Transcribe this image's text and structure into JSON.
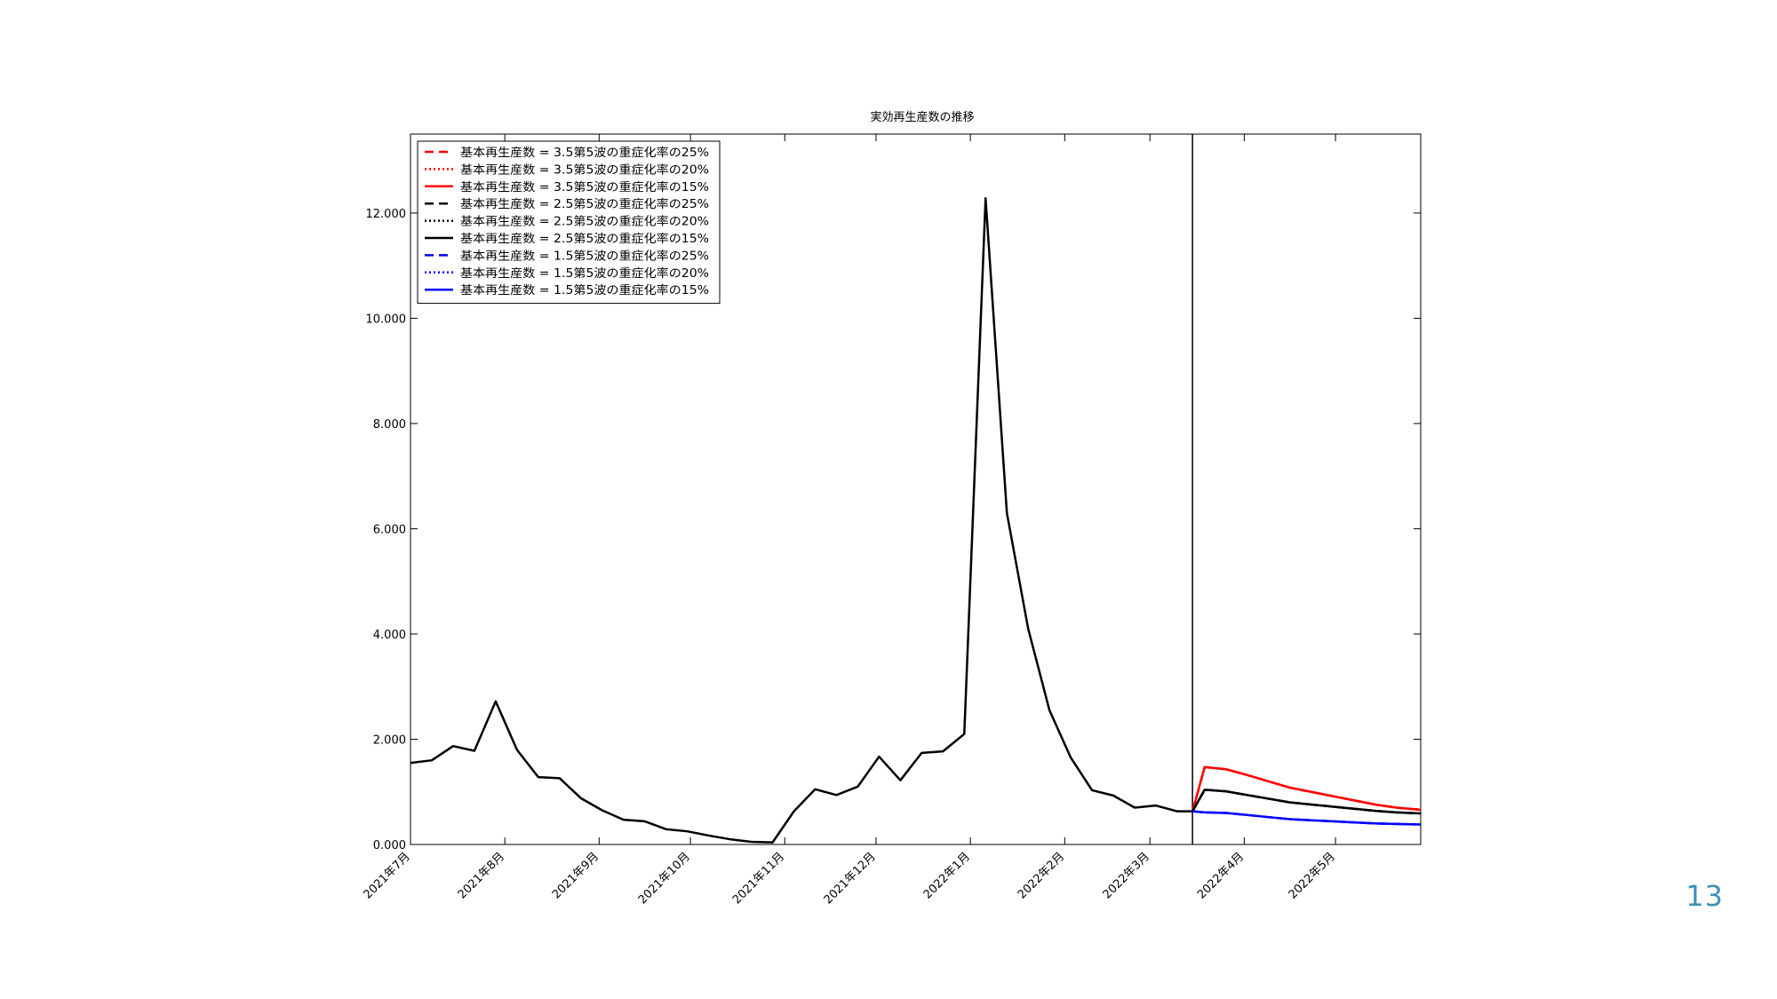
{
  "slide_number": "13",
  "chart_data": {
    "type": "line",
    "title": "実効再生産数の推移",
    "xlabel": "",
    "ylabel": "",
    "ylim": [
      0,
      13.5
    ],
    "yticks": [
      0,
      2,
      4,
      6,
      8,
      10,
      12
    ],
    "ytick_labels": [
      "0.000",
      "2.000",
      "4.000",
      "6.000",
      "8.000",
      "10.000",
      "12.000"
    ],
    "xlim": [
      "2021-07-01",
      "2022-05-29"
    ],
    "xticks": [
      "2021-07-01",
      "2021-08-01",
      "2021-09-01",
      "2021-10-01",
      "2021-11-01",
      "2021-12-01",
      "2022-01-01",
      "2022-02-01",
      "2022-03-01",
      "2022-04-01",
      "2022-05-01"
    ],
    "xtick_labels": [
      "2021年7月",
      "2021年8月",
      "2021年9月",
      "2021年10月",
      "2021年11月",
      "2021年12月",
      "2022年1月",
      "2022年2月",
      "2022年3月",
      "2022年4月",
      "2022年5月"
    ],
    "vline": "2022-03-15",
    "grid": false,
    "legend_position": "top-left",
    "colors": {
      "red": "#ff0000",
      "black": "#000000",
      "blue": "#0000ff"
    },
    "historical": {
      "x": [
        "2021-07-01",
        "2021-07-08",
        "2021-07-15",
        "2021-07-22",
        "2021-07-29",
        "2021-08-05",
        "2021-08-12",
        "2021-08-19",
        "2021-08-26",
        "2021-09-02",
        "2021-09-09",
        "2021-09-16",
        "2021-09-23",
        "2021-09-30",
        "2021-10-07",
        "2021-10-14",
        "2021-10-21",
        "2021-10-28",
        "2021-11-04",
        "2021-11-11",
        "2021-11-18",
        "2021-11-25",
        "2021-12-02",
        "2021-12-09",
        "2021-12-16",
        "2021-12-23",
        "2021-12-30",
        "2022-01-06",
        "2022-01-13",
        "2022-01-20",
        "2022-01-27",
        "2022-02-03",
        "2022-02-10",
        "2022-02-17",
        "2022-02-24",
        "2022-03-03",
        "2022-03-10",
        "2022-03-15"
      ],
      "values": [
        1.55,
        1.6,
        1.87,
        1.78,
        2.72,
        1.8,
        1.28,
        1.26,
        0.88,
        0.65,
        0.47,
        0.44,
        0.29,
        0.25,
        0.17,
        0.1,
        0.05,
        0.04,
        0.63,
        1.05,
        0.94,
        1.1,
        1.67,
        1.22,
        1.74,
        1.77,
        2.1,
        12.28,
        6.3,
        4.1,
        2.55,
        1.65,
        1.03,
        0.93,
        0.7,
        0.74,
        0.63,
        0.63
      ]
    },
    "projection_x": [
      "2022-03-15",
      "2022-03-19",
      "2022-03-26",
      "2022-04-02",
      "2022-04-09",
      "2022-04-16",
      "2022-04-23",
      "2022-04-30",
      "2022-05-07",
      "2022-05-14",
      "2022-05-21",
      "2022-05-29"
    ],
    "series": [
      {
        "name": "基本再生産数 = 3.5第5波の重症化率の25%",
        "color": "#ff0000",
        "style": "dashed",
        "values": [
          0.63,
          1.47,
          1.43,
          1.32,
          1.2,
          1.08,
          1.0,
          0.92,
          0.84,
          0.76,
          0.7,
          0.66
        ]
      },
      {
        "name": "基本再生産数 = 3.5第5波の重症化率の20%",
        "color": "#ff0000",
        "style": "dotted",
        "values": [
          0.63,
          1.47,
          1.43,
          1.32,
          1.2,
          1.08,
          1.0,
          0.92,
          0.84,
          0.76,
          0.7,
          0.66
        ]
      },
      {
        "name": "基本再生産数 = 3.5第5波の重症化率の15%",
        "color": "#ff0000",
        "style": "solid",
        "values": [
          0.63,
          1.47,
          1.43,
          1.32,
          1.2,
          1.08,
          1.0,
          0.92,
          0.84,
          0.76,
          0.7,
          0.66
        ]
      },
      {
        "name": "基本再生産数 = 2.5第5波の重症化率の25%",
        "color": "#000000",
        "style": "dashed",
        "values": [
          0.63,
          1.04,
          1.01,
          0.94,
          0.87,
          0.8,
          0.76,
          0.72,
          0.68,
          0.64,
          0.61,
          0.59
        ]
      },
      {
        "name": "基本再生産数 = 2.5第5波の重症化率の20%",
        "color": "#000000",
        "style": "dotted",
        "values": [
          0.63,
          1.04,
          1.01,
          0.94,
          0.87,
          0.8,
          0.76,
          0.72,
          0.68,
          0.64,
          0.61,
          0.59
        ]
      },
      {
        "name": "基本再生産数 = 2.5第5波の重症化率の15%",
        "color": "#000000",
        "style": "solid",
        "values": [
          0.63,
          1.04,
          1.01,
          0.94,
          0.87,
          0.8,
          0.76,
          0.72,
          0.68,
          0.64,
          0.61,
          0.59
        ]
      },
      {
        "name": "基本再生産数 = 1.5第5波の重症化率の25%",
        "color": "#0000ff",
        "style": "dashed",
        "values": [
          0.63,
          0.61,
          0.6,
          0.56,
          0.52,
          0.48,
          0.46,
          0.44,
          0.42,
          0.4,
          0.39,
          0.38
        ]
      },
      {
        "name": "基本再生産数 = 1.5第5波の重症化率の20%",
        "color": "#0000ff",
        "style": "dotted",
        "values": [
          0.63,
          0.61,
          0.6,
          0.56,
          0.52,
          0.48,
          0.46,
          0.44,
          0.42,
          0.4,
          0.39,
          0.38
        ]
      },
      {
        "name": "基本再生産数 = 1.5第5波の重症化率の15%",
        "color": "#0000ff",
        "style": "solid",
        "values": [
          0.63,
          0.61,
          0.6,
          0.56,
          0.52,
          0.48,
          0.46,
          0.44,
          0.42,
          0.4,
          0.39,
          0.38
        ]
      }
    ]
  }
}
